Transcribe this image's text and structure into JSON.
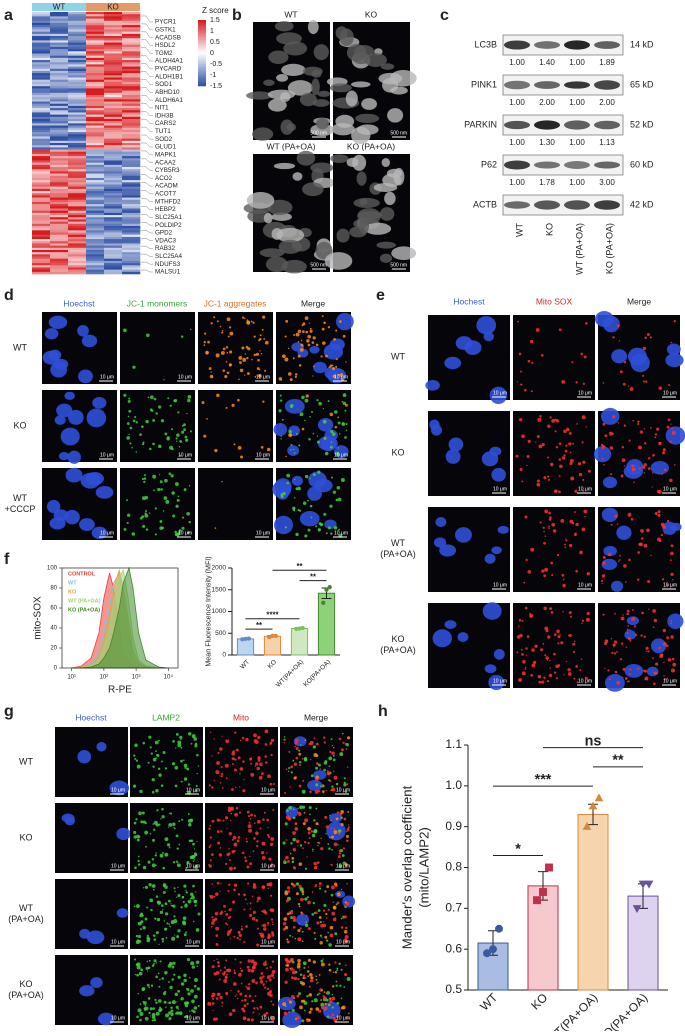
{
  "panels": {
    "a": {
      "label": "a",
      "groups": [
        "WT",
        "KO"
      ],
      "colorbar_title": "Z score",
      "colorbar_ticks": [
        1.5,
        1,
        0.5,
        0,
        -0.5,
        -1,
        -1.5
      ],
      "genes": [
        "PYCR1",
        "GSTK1",
        "ACADSB",
        "HSDL2",
        "TGM2",
        "ALDH4A1",
        "PYCARD",
        "ALDH1B1",
        "SOD1",
        "ABHD10",
        "ALDH6A1",
        "NIT1",
        "IDH3B",
        "CARS2",
        "TUT1",
        "SOD2",
        "GLUD1",
        "MAPK1",
        "ACAA2",
        "CYB5R3",
        "ACO2",
        "ACADM",
        "ACOT7",
        "MTHFD2",
        "HEBP2",
        "SLC25A1",
        "POLDIP2",
        "GPD2",
        "VDAC3",
        "RAB32",
        "SLC25A4",
        "NDUFS3",
        "MALSU1"
      ]
    },
    "b": {
      "label": "b",
      "titles": [
        "WT",
        "KO",
        "WT (PA+OA)",
        "KO (PA+OA)"
      ],
      "scale_bar": "500 nm"
    },
    "c": {
      "label": "c",
      "lanes": [
        "WT",
        "KO",
        "WT (PA+OA)",
        "KO (PA+OA)"
      ],
      "proteins": [
        {
          "name": "LC3B",
          "size": "14 kD",
          "ratios": [
            "1.00",
            "1.40",
            "1.00",
            "1.89"
          ]
        },
        {
          "name": "PINK1",
          "size": "65 kD",
          "ratios": [
            "1.00",
            "2.00",
            "1.00",
            "2.00"
          ]
        },
        {
          "name": "PARKIN",
          "size": "52 kD",
          "ratios": [
            "1.00",
            "1.30",
            "1.00",
            "1.13"
          ]
        },
        {
          "name": "P62",
          "size": "60 kD",
          "ratios": [
            "1.00",
            "1.78",
            "1.00",
            "3.00"
          ]
        },
        {
          "name": "ACTB",
          "size": "42 kD"
        }
      ]
    },
    "d": {
      "label": "d",
      "columns": [
        "Hoechst",
        "JC-1 monomers",
        "JC-1 aggregates",
        "Merge"
      ],
      "rows": [
        [
          "WT"
        ],
        [
          "KO"
        ],
        [
          "WT",
          "+CCCP"
        ]
      ],
      "scale_bar": "10 μm"
    },
    "e": {
      "label": "e",
      "columns": [
        "Hochest",
        "Mito SOX",
        "Merge"
      ],
      "rows": [
        [
          "WT"
        ],
        [
          "KO"
        ],
        [
          "WT",
          "(PA+OA)"
        ],
        [
          "KO",
          "(PA+OA)"
        ]
      ],
      "scale_bar": "10 μm"
    },
    "f": {
      "label": "f"
    },
    "g": {
      "label": "g",
      "columns": [
        "Hoechst",
        "LAMP2",
        "Mito",
        "Merge"
      ],
      "rows": [
        [
          "WT"
        ],
        [
          "KO"
        ],
        [
          "WT",
          "(PA+OA)"
        ],
        [
          "KO",
          "(PA+OA)"
        ]
      ],
      "scale_bar": "10 μm"
    },
    "h": {
      "label": "h"
    }
  },
  "chart_data": [
    {
      "type": "area",
      "y_label": "mito-SOX",
      "x_label": "R-PE",
      "log_x": true,
      "x": [
        10,
        20,
        40,
        70,
        100,
        150,
        200,
        300,
        400,
        600,
        800,
        1200,
        2000,
        5000,
        10000
      ],
      "series": [
        {
          "name": "CONTROL",
          "color": "#e8413c",
          "values": [
            0,
            2,
            10,
            35,
            70,
            95,
            80,
            40,
            15,
            5,
            2,
            0,
            0,
            0,
            0
          ]
        },
        {
          "name": "WT",
          "color": "#7cc6e8",
          "values": [
            0,
            1,
            4,
            15,
            35,
            60,
            85,
            95,
            70,
            35,
            12,
            4,
            1,
            0,
            0
          ]
        },
        {
          "name": "KO",
          "color": "#f0a040",
          "values": [
            0,
            1,
            3,
            12,
            30,
            55,
            80,
            98,
            80,
            45,
            18,
            5,
            1,
            0,
            0
          ]
        },
        {
          "name": "WT (PA+OA)",
          "color": "#9fd47a",
          "values": [
            0,
            0,
            2,
            8,
            20,
            40,
            65,
            90,
            98,
            65,
            30,
            8,
            2,
            0,
            0
          ]
        },
        {
          "name": "KO (PA+OA)",
          "color": "#3f8a2c",
          "values": [
            0,
            0,
            1,
            4,
            10,
            20,
            35,
            60,
            85,
            100,
            80,
            35,
            8,
            1,
            0
          ]
        }
      ],
      "xlim": [
        5,
        20000
      ],
      "xticks": [
        {
          "value": 10,
          "label": "10¹"
        },
        {
          "value": 100,
          "label": "10²"
        },
        {
          "value": 1000,
          "label": "10³"
        },
        {
          "value": 10000,
          "label": "10⁴"
        }
      ],
      "ylim": [
        0,
        100
      ],
      "yticks": [
        0,
        20,
        40,
        60,
        80,
        100
      ]
    },
    {
      "type": "bar",
      "y_label": "Mean Fluorescence Intensity (MFI)",
      "categories": [
        "WT",
        "KO",
        "WT(PA+OA)",
        "KO(PA+OA)"
      ],
      "values": [
        370,
        430,
        610,
        1420
      ],
      "errors": [
        12,
        15,
        10,
        120
      ],
      "points": [
        [
          360,
          370,
          380
        ],
        [
          410,
          440,
          440
        ],
        [
          600,
          610,
          620
        ],
        [
          1200,
          1500,
          1560
        ]
      ],
      "colors": [
        "#bcd6f0",
        "#f7d2a8",
        "#cfe8bf",
        "#8fd17a"
      ],
      "edge_colors": [
        "#5b8fc8",
        "#d88a3a",
        "#7cbf5c",
        "#3f8a2c"
      ],
      "markers": [
        "circle",
        "circle",
        "circle",
        "circle"
      ],
      "ylim": [
        0,
        2000
      ],
      "yticks": [
        0,
        500,
        1000,
        1500,
        2000
      ],
      "significance": [
        {
          "label": "**",
          "between": [
            0,
            1
          ]
        },
        {
          "label": "****",
          "between": [
            0,
            2
          ]
        },
        {
          "label": "**",
          "between": [
            2,
            3
          ]
        },
        {
          "label": "**",
          "between": [
            1,
            3
          ]
        }
      ]
    },
    {
      "type": "bar",
      "y_label": [
        "Mander's overlap coefficient",
        "(mito/LAMP2)"
      ],
      "categories": [
        "WT",
        "KO",
        "WT(PA+OA)",
        "KO(PA+OA)"
      ],
      "values": [
        0.615,
        0.755,
        0.93,
        0.73
      ],
      "errors": [
        0.03,
        0.035,
        0.025,
        0.03
      ],
      "points": [
        [
          0.59,
          0.6,
          0.65
        ],
        [
          0.72,
          0.74,
          0.8
        ],
        [
          0.9,
          0.95,
          0.97
        ],
        [
          0.7,
          0.76,
          0.76
        ]
      ],
      "colors": [
        "#a9bde3",
        "#f6c9cf",
        "#f6d5ae",
        "#ddd3ee"
      ],
      "edge_colors": [
        "#3a5aa0",
        "#c0304a",
        "#d88a3a",
        "#6a52a0"
      ],
      "markers": [
        "circle",
        "square",
        "triangle",
        "triangle-down"
      ],
      "ylim": [
        0.5,
        1.1
      ],
      "yticks": [
        0.5,
        0.6,
        0.7,
        0.8,
        0.9,
        {
          "value": 1,
          "label": "1.0"
        },
        1.1
      ],
      "significance": [
        {
          "label": "*",
          "between": [
            0,
            1
          ]
        },
        {
          "label": "***",
          "between": [
            0,
            2
          ]
        },
        {
          "label": "**",
          "between": [
            2,
            3
          ]
        },
        {
          "label": "ns",
          "between": [
            1,
            3
          ]
        }
      ]
    }
  ]
}
